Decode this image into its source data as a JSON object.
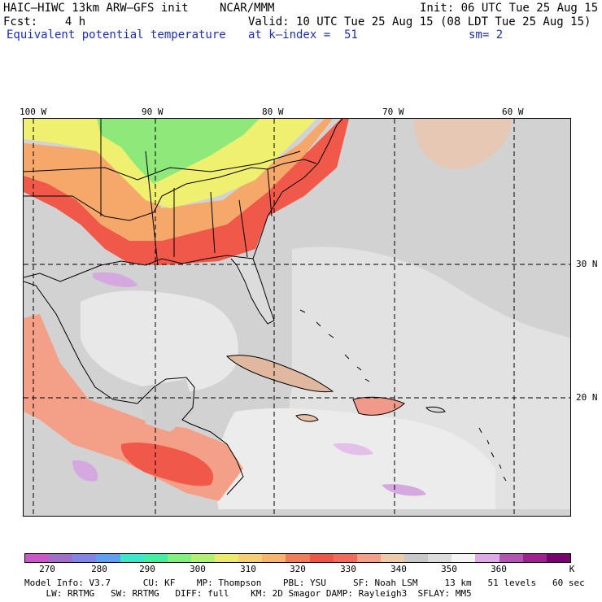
{
  "header": {
    "model": "HAIC–HIWC 13km ARW–GFS init",
    "org": "NCAR/MMM",
    "init": "Init: 06 UTC Tue 25 Aug 15",
    "fcst": "Fcst:    4 h",
    "valid": "Valid: 10 UTC Tue 25 Aug 15 (08 LDT Tue 25 Aug 15)",
    "field": "Equivalent potential temperature",
    "level": "at k–index =  51",
    "smooth": "sm= 2"
  },
  "map": {
    "lon_labels": [
      "100 W",
      "90 W",
      "80 W",
      "70 W",
      "60 W"
    ],
    "lat_labels": [
      "30 N",
      "20 N"
    ],
    "colors": {
      "ocean_gray": "#c8c8c8",
      "light_gray": "#dcdcdc",
      "very_light": "#ececec",
      "green": "#8fe87a",
      "yellow": "#f0f070",
      "orange": "#f5b56e",
      "red": "#f0584a",
      "salmon": "#f29a8a",
      "tan": "#e9c3a7",
      "lavender": "#d6a8e0"
    }
  },
  "colorbar": {
    "unit": "K",
    "colors": [
      "#cc55cc",
      "#a070c8",
      "#8484e8",
      "#5fa0f0",
      "#3ce6c8",
      "#40f0a0",
      "#80f080",
      "#b4f070",
      "#ecec6a",
      "#f6d070",
      "#f6b46c",
      "#f27c56",
      "#ee5544",
      "#f26a5a",
      "#f4a088",
      "#eecaa8",
      "#c8c8c8",
      "#dcdcdc",
      "#f4f4f4",
      "#dcaae6",
      "#b455b4",
      "#a02090",
      "#7a0070"
    ],
    "ticks": [
      "270",
      "280",
      "290",
      "300",
      "310",
      "320",
      "330",
      "340",
      "350",
      "360"
    ]
  },
  "footer": {
    "line1": "Model Info: V3.7      CU: KF    MP: Thompson    PBL: YSU     SF: Noah LSM     13 km   51 levels   60 sec",
    "line2": "    LW: RRTMG   SW: RRTMG   DIFF: full    KM: 2D Smagor DAMP: Rayleigh3  SFLAY: MM5"
  }
}
